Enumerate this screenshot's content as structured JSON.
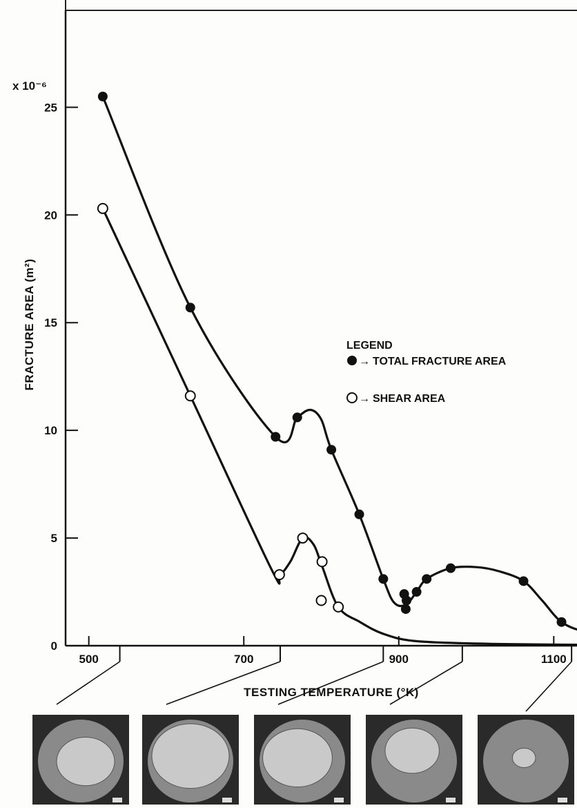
{
  "chart_data": {
    "type": "line",
    "title": "",
    "xlabel": "TESTING TEMPERATURE (°K)",
    "ylabel": "FRACTURE AREA (m²)",
    "y_multiplier": "x 10⁻⁶",
    "xlim": [
      470,
      1130
    ],
    "ylim": [
      0,
      29.5
    ],
    "x_ticks": [
      "500",
      "700",
      "900",
      "1100"
    ],
    "y_ticks": [
      "0",
      "5",
      "10",
      "15",
      "20",
      "25"
    ],
    "grid": false,
    "legend_title": "LEGEND",
    "legend_position": "right-middle",
    "series": [
      {
        "name": "TOTAL FRACTURE AREA",
        "marker": "filled-circle",
        "color": "#111111",
        "points": [
          [
            518,
            25.5
          ],
          [
            631,
            15.7
          ],
          [
            741,
            9.7
          ],
          [
            769,
            10.6
          ],
          [
            813,
            9.1
          ],
          [
            849,
            6.1
          ],
          [
            880,
            3.1
          ],
          [
            907,
            2.4
          ],
          [
            909,
            1.7
          ],
          [
            910,
            2.1
          ],
          [
            923,
            2.5
          ],
          [
            936,
            3.1
          ],
          [
            967,
            3.6
          ],
          [
            1061,
            3.0
          ],
          [
            1110,
            1.1
          ],
          [
            1172,
            0.6
          ]
        ],
        "curve": [
          [
            518,
            25.5
          ],
          [
            631,
            15.7
          ],
          [
            741,
            9.7
          ],
          [
            769,
            10.6
          ],
          [
            786,
            10.95
          ],
          [
            800,
            10.5
          ],
          [
            813,
            9.1
          ],
          [
            849,
            6.1
          ],
          [
            880,
            3.1
          ],
          [
            894,
            2.0
          ],
          [
            909,
            1.9
          ],
          [
            923,
            2.5
          ],
          [
            936,
            3.1
          ],
          [
            967,
            3.6
          ],
          [
            1000,
            3.65
          ],
          [
            1030,
            3.45
          ],
          [
            1061,
            3.0
          ],
          [
            1085,
            2.1
          ],
          [
            1110,
            1.1
          ],
          [
            1140,
            0.65
          ],
          [
            1172,
            0.5
          ]
        ]
      },
      {
        "name": "SHEAR AREA",
        "marker": "open-circle",
        "color": "#111111",
        "points": [
          [
            518,
            20.3
          ],
          [
            631,
            11.6
          ],
          [
            746,
            3.3
          ],
          [
            776,
            5.0
          ],
          [
            801,
            3.9
          ],
          [
            800,
            2.1
          ],
          [
            822,
            1.8
          ]
        ],
        "curve": [
          [
            518,
            20.3
          ],
          [
            631,
            11.6
          ],
          [
            735,
            3.6
          ],
          [
            746,
            3.3
          ],
          [
            760,
            3.9
          ],
          [
            776,
            5.0
          ],
          [
            790,
            4.7
          ],
          [
            801,
            3.7
          ],
          [
            822,
            1.8
          ],
          [
            850,
            1.1
          ],
          [
            880,
            0.55
          ],
          [
            920,
            0.22
          ],
          [
            1000,
            0.1
          ],
          [
            1100,
            0.05
          ],
          [
            1172,
            0.04
          ]
        ]
      }
    ],
    "fractograph_temperatures": [
      540,
      747,
      880,
      982,
      1123
    ]
  }
}
